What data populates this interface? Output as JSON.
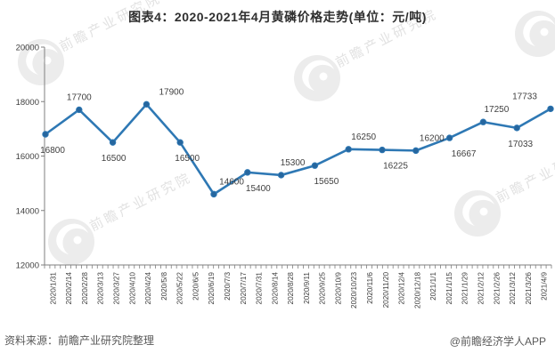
{
  "title": "图表4：2020-2021年4月黄磷价格走势(单位：元/吨)",
  "footer": {
    "source": "资料来源：前瞻产业研究院整理",
    "credit": "@前瞻经济学人APP"
  },
  "watermark": {
    "text": "前瞻产业研究院"
  },
  "colors": {
    "line": "#2E78B4",
    "marker": "#26669E",
    "axis": "#7f7f7f",
    "tick_label": "#404040",
    "data_label": "#3f3f3f",
    "watermark_circle": "#ececec",
    "watermark_text": "#e2e2e2"
  },
  "chart_data": {
    "type": "line",
    "title": "图表4：2020-2021年4月黄磷价格走势(单位：元/吨)",
    "ylabel": "",
    "xlabel": "",
    "unit": "元/吨",
    "ylim": [
      12000,
      20000
    ],
    "yticks": [
      20000,
      18000,
      16000,
      14000,
      12000
    ],
    "grid": false,
    "legend": false,
    "x_tick_labels": [
      "2020/1/31",
      "2020/2/14",
      "2020/2/28",
      "2020/3/13",
      "2020/3/27",
      "2020/4/10",
      "2020/4/24",
      "2020/5/8",
      "2020/5/22",
      "2020/6/5",
      "2020/6/19",
      "2020/7/3",
      "2020/7/17",
      "2020/7/31",
      "2020/8/14",
      "2020/8/28",
      "2020/9/11",
      "2020/9/25",
      "2020/10/9",
      "2020/10/23",
      "2020/11/6",
      "2020/11/20",
      "2020/12/4",
      "2020/12/18",
      "2021/1/1",
      "2021/1/15",
      "2021/1/29",
      "2021/2/12",
      "2021/2/26",
      "2021/3/12",
      "2021/3/26",
      "2021/4/9"
    ],
    "series": [
      {
        "values": [
          16800,
          17700,
          16500,
          17900,
          16500,
          14600,
          15400,
          15300,
          15650,
          16250,
          16225,
          16200,
          16667,
          17250,
          17033,
          17733
        ],
        "point_labels": [
          "16800",
          "17700",
          "16500",
          "17900",
          "16500",
          "14600",
          "15400",
          "15300",
          "15650",
          "16250",
          "16225",
          "16200",
          "16667",
          "17250",
          "17033",
          "17733"
        ]
      }
    ]
  }
}
